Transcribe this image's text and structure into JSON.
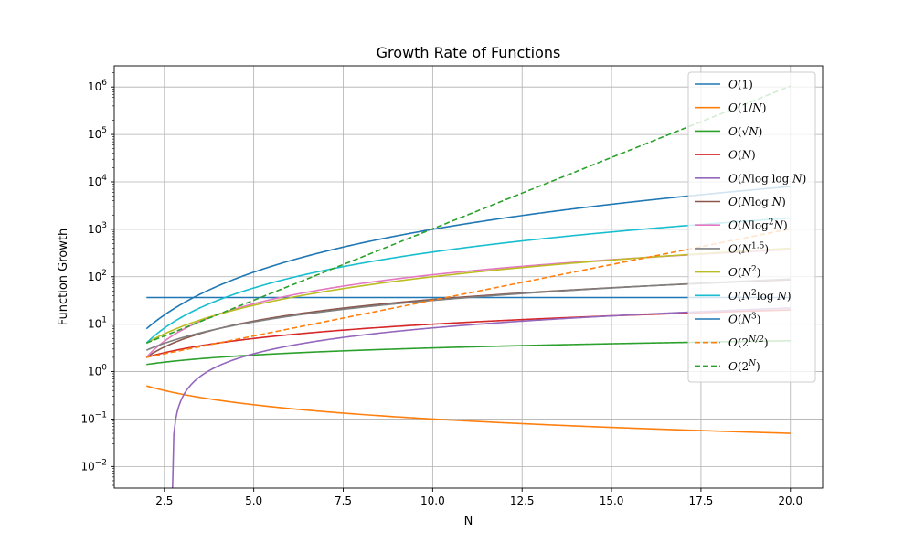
{
  "chart_data": {
    "type": "line",
    "title": "Growth Rate of Functions",
    "xlabel": "N",
    "ylabel": "Function Growth",
    "xlim": [
      1.1,
      20.9
    ],
    "ylim": [
      0.0035,
      2800000
    ],
    "x_scale": "linear",
    "y_scale": "log",
    "grid": true,
    "legend_position": "upper right",
    "x_ticks": [
      2.5,
      5.0,
      7.5,
      10.0,
      12.5,
      15.0,
      17.5,
      20.0
    ],
    "x_tick_labels": [
      "2.5",
      "5.0",
      "7.5",
      "10.0",
      "12.5",
      "15.0",
      "17.5",
      "20.0"
    ],
    "y_ticks": [
      {
        "value": 0.01,
        "base": "10",
        "exp": "−2"
      },
      {
        "value": 0.1,
        "base": "10",
        "exp": "−1"
      },
      {
        "value": 1,
        "base": "10",
        "exp": "0"
      },
      {
        "value": 10,
        "base": "10",
        "exp": "1"
      },
      {
        "value": 100,
        "base": "10",
        "exp": "2"
      },
      {
        "value": 1000,
        "base": "10",
        "exp": "3"
      },
      {
        "value": 10000,
        "base": "10",
        "exp": "4"
      },
      {
        "value": 100000,
        "base": "10",
        "exp": "5"
      },
      {
        "value": 1000000,
        "base": "10",
        "exp": "6"
      }
    ],
    "x_domain": [
      2,
      20
    ],
    "series": [
      {
        "name": "O(1)",
        "color": "#1f77b4",
        "dash": "solid",
        "x": [
          2,
          20
        ],
        "y": [
          36.5,
          36.5
        ]
      },
      {
        "name": "O(1/N)",
        "color": "#ff7f0e",
        "dash": "solid",
        "formula": "1/N"
      },
      {
        "name": "O(√N)",
        "color": "#2ca02c",
        "dash": "solid",
        "formula": "sqrt(N)"
      },
      {
        "name": "O(N)",
        "color": "#d62728",
        "dash": "solid",
        "formula": "N"
      },
      {
        "name": "O(N log log N)",
        "color": "#9467bd",
        "dash": "solid",
        "formula": "N*log(log(N))"
      },
      {
        "name": "O(N log N)",
        "color": "#8c564b",
        "dash": "solid",
        "formula": "N*log2(N)"
      },
      {
        "name": "O(N log² N)",
        "color": "#e377c2",
        "dash": "solid",
        "formula": "N*log2(N)^2"
      },
      {
        "name": "O(N^1.5)",
        "color": "#7f7f7f",
        "dash": "solid",
        "formula": "N^1.5"
      },
      {
        "name": "O(N²)",
        "color": "#bcbd22",
        "dash": "solid",
        "formula": "N^2"
      },
      {
        "name": "O(N² log N)",
        "color": "#17becf",
        "dash": "solid",
        "formula": "N^2*log2(N)"
      },
      {
        "name": "O(N³)",
        "color": "#1f77b4",
        "dash": "solid",
        "formula": "N^3"
      },
      {
        "name": "O(2^(N/2))",
        "color": "#ff7f0e",
        "dash": "dashed",
        "formula": "2^(N/2)"
      },
      {
        "name": "O(2^N)",
        "color": "#2ca02c",
        "dash": "dashed",
        "formula": "2^N"
      }
    ],
    "legend": [
      {
        "parts": [
          {
            "t": "O",
            "i": true
          },
          {
            "t": "(1)"
          }
        ]
      },
      {
        "parts": [
          {
            "t": "O",
            "i": true
          },
          {
            "t": "(1/"
          },
          {
            "t": "N",
            "i": true
          },
          {
            "t": ")"
          }
        ]
      },
      {
        "parts": [
          {
            "t": "O",
            "i": true
          },
          {
            "t": "(√"
          },
          {
            "t": "N",
            "i": true
          },
          {
            "t": ")"
          }
        ]
      },
      {
        "parts": [
          {
            "t": "O",
            "i": true
          },
          {
            "t": "("
          },
          {
            "t": "N",
            "i": true
          },
          {
            "t": ")"
          }
        ]
      },
      {
        "parts": [
          {
            "t": "O",
            "i": true
          },
          {
            "t": "("
          },
          {
            "t": "N",
            "i": true
          },
          {
            "t": "log log "
          },
          {
            "t": "N",
            "i": true
          },
          {
            "t": ")"
          }
        ]
      },
      {
        "parts": [
          {
            "t": "O",
            "i": true
          },
          {
            "t": "("
          },
          {
            "t": "N",
            "i": true
          },
          {
            "t": "log "
          },
          {
            "t": "N",
            "i": true
          },
          {
            "t": ")"
          }
        ]
      },
      {
        "parts": [
          {
            "t": "O",
            "i": true
          },
          {
            "t": "("
          },
          {
            "t": "N",
            "i": true
          },
          {
            "t": "log"
          },
          {
            "t": "2",
            "sup": true
          },
          {
            "t": "N",
            "i": true
          },
          {
            "t": ")"
          }
        ]
      },
      {
        "parts": [
          {
            "t": "O",
            "i": true
          },
          {
            "t": "("
          },
          {
            "t": "N",
            "i": true
          },
          {
            "t": "1.5",
            "sup": true
          },
          {
            "t": ")"
          }
        ]
      },
      {
        "parts": [
          {
            "t": "O",
            "i": true
          },
          {
            "t": "("
          },
          {
            "t": "N",
            "i": true
          },
          {
            "t": "2",
            "sup": true
          },
          {
            "t": ")"
          }
        ]
      },
      {
        "parts": [
          {
            "t": "O",
            "i": true
          },
          {
            "t": "("
          },
          {
            "t": "N",
            "i": true
          },
          {
            "t": "2",
            "sup": true
          },
          {
            "t": "log "
          },
          {
            "t": "N",
            "i": true
          },
          {
            "t": ")"
          }
        ]
      },
      {
        "parts": [
          {
            "t": "O",
            "i": true
          },
          {
            "t": "("
          },
          {
            "t": "N",
            "i": true
          },
          {
            "t": "3",
            "sup": true
          },
          {
            "t": ")"
          }
        ]
      },
      {
        "parts": [
          {
            "t": "O",
            "i": true
          },
          {
            "t": "(2"
          },
          {
            "t": "N/2",
            "sup": true,
            "i": true
          },
          {
            "t": ")"
          }
        ]
      },
      {
        "parts": [
          {
            "t": "O",
            "i": true
          },
          {
            "t": "(2"
          },
          {
            "t": "N",
            "sup": true,
            "i": true
          },
          {
            "t": ")"
          }
        ]
      }
    ]
  }
}
